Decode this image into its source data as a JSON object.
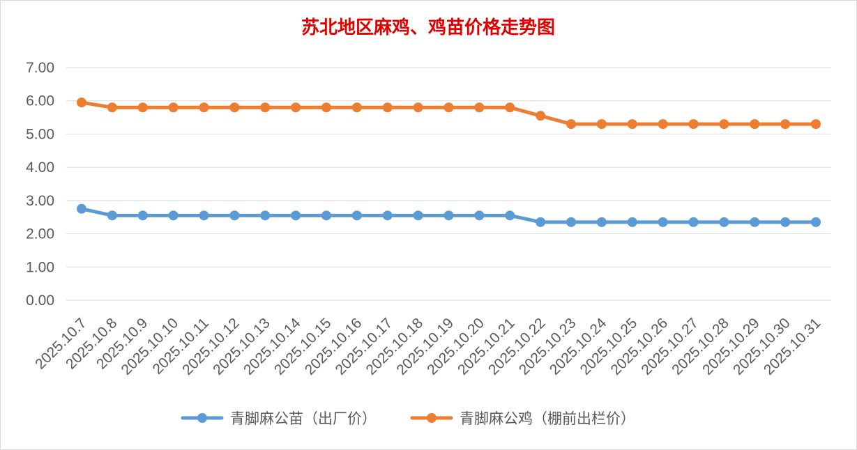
{
  "chart_data": {
    "type": "line",
    "title": "苏北地区麻鸡、鸡苗价格走势图",
    "colors": {
      "title": "#e00000",
      "grid": "#d9d9d9",
      "axis_text": "#595959"
    },
    "categories": [
      "2025.10.7",
      "2025.10.8",
      "2025.10.9",
      "2025.10.10",
      "2025.10.11",
      "2025.10.12",
      "2025.10.13",
      "2025.10.14",
      "2025.10.15",
      "2025.10.16",
      "2025.10.17",
      "2025.10.18",
      "2025.10.19",
      "2025.10.20",
      "2025.10.21",
      "2025.10.22",
      "2025.10.23",
      "2025.10.24",
      "2025.10.25",
      "2025.10.26",
      "2025.10.27",
      "2025.10.28",
      "2025.10.29",
      "2025.10.30",
      "2025.10.31"
    ],
    "ylim": [
      0,
      7
    ],
    "yticks": [
      "0.00",
      "1.00",
      "2.00",
      "3.00",
      "4.00",
      "5.00",
      "6.00",
      "7.00"
    ],
    "grid": true,
    "legend_position": "bottom",
    "series": [
      {
        "name": "青脚麻公苗（出厂价）",
        "color": "#5b9bd5",
        "values": [
          2.75,
          2.55,
          2.55,
          2.55,
          2.55,
          2.55,
          2.55,
          2.55,
          2.55,
          2.55,
          2.55,
          2.55,
          2.55,
          2.55,
          2.55,
          2.35,
          2.35,
          2.35,
          2.35,
          2.35,
          2.35,
          2.35,
          2.35,
          2.35,
          2.35
        ]
      },
      {
        "name": "青脚麻公鸡（棚前出栏价）",
        "color": "#ed7d31",
        "values": [
          5.95,
          5.8,
          5.8,
          5.8,
          5.8,
          5.8,
          5.8,
          5.8,
          5.8,
          5.8,
          5.8,
          5.8,
          5.8,
          5.8,
          5.8,
          5.55,
          5.3,
          5.3,
          5.3,
          5.3,
          5.3,
          5.3,
          5.3,
          5.3,
          5.3
        ]
      }
    ]
  }
}
